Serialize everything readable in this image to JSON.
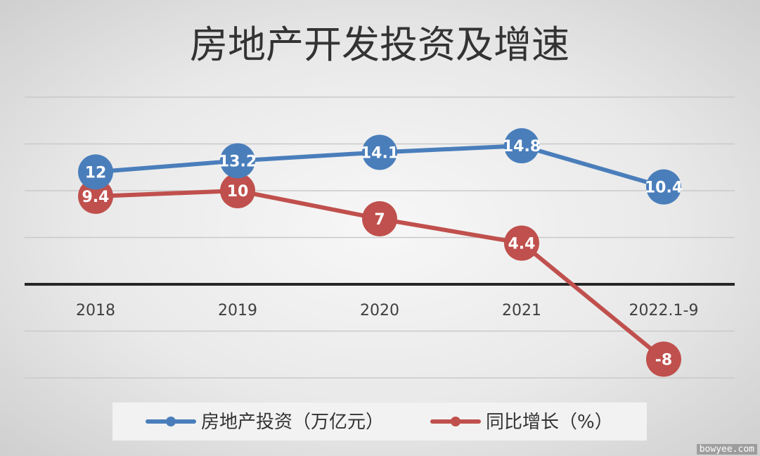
{
  "title": "房地产开发投资及增速",
  "watermark": "bowyee.com",
  "chart_data": {
    "type": "line",
    "title": "房地产开发投资及增速",
    "categories": [
      "2018",
      "2019",
      "2020",
      "2021",
      "2022.1-9"
    ],
    "series": [
      {
        "name": "房地产投资（万亿元）",
        "values": [
          12,
          13.2,
          14.1,
          14.8,
          10.4
        ],
        "labels": [
          "12",
          "13.2",
          "14.1",
          "14.8",
          "10.4"
        ],
        "color": "#4a7ebb"
      },
      {
        "name": "同比增长（%）",
        "values": [
          9.4,
          10,
          7,
          4.4,
          -8
        ],
        "labels": [
          "9.4",
          "10",
          "7",
          "4.4",
          "-8"
        ],
        "color": "#c0504d"
      }
    ],
    "ylim": [
      -10,
      20
    ],
    "grid": true,
    "legend": "bottom"
  }
}
